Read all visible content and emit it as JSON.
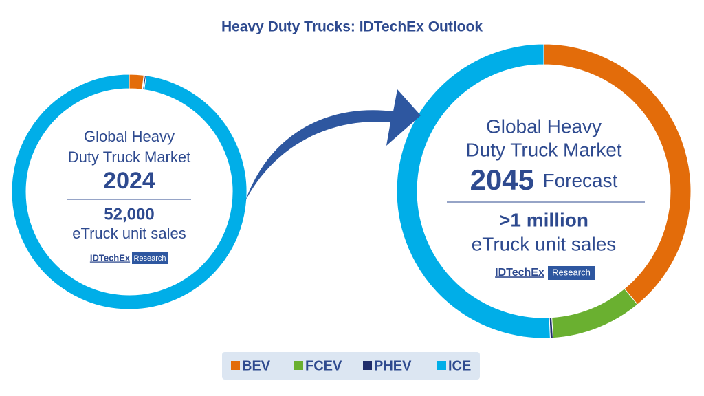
{
  "title": "Heavy Duty Trucks: IDTechEx Outlook",
  "brand": {
    "name": "IDTechEx",
    "tag": "Research"
  },
  "chart_data": [
    {
      "type": "donut",
      "categories": [
        "BEV",
        "FCEV",
        "PHEV",
        "ICE"
      ],
      "colors": [
        "#e36c0a",
        "#6ab030",
        "#1f2d6b",
        "#00aee8"
      ],
      "values": [
        2,
        0.1,
        0.2,
        97.7
      ],
      "label_lines": [
        "Global Heavy",
        "Duty Truck Market"
      ],
      "year": "2024",
      "headline": "52,000",
      "subline": "eTruck unit sales"
    },
    {
      "type": "donut",
      "categories": [
        "BEV",
        "FCEV",
        "PHEV",
        "ICE"
      ],
      "colors": [
        "#e36c0a",
        "#6ab030",
        "#1f2d6b",
        "#00aee8"
      ],
      "values": [
        39,
        10,
        0.3,
        50.7
      ],
      "label_lines": [
        "Global Heavy",
        "Duty Truck Market"
      ],
      "year": "2045",
      "year_note": "Forecast",
      "headline": ">1 million",
      "subline": "eTruck unit sales"
    }
  ]
}
